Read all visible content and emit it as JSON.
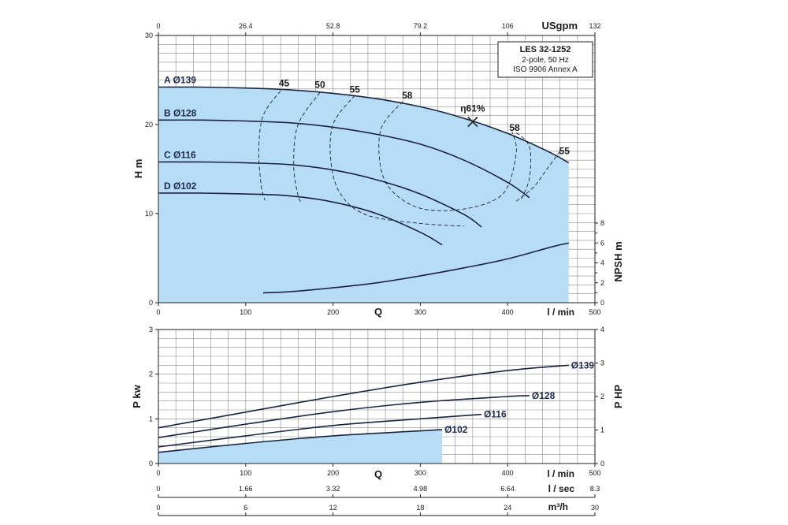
{
  "chart_data": [
    {
      "type": "line",
      "model_box": {
        "title": "LES 32-1252",
        "line1": "2-pole, 50 Hz",
        "line2": "ISO 9906 Annex A"
      },
      "x_label_q": "Q",
      "x_unit_lmin": "l / min",
      "x_ticks_lmin": [
        0,
        100,
        200,
        300,
        400,
        500
      ],
      "xlim": [
        0,
        500
      ],
      "top_unit": "USgpm",
      "top_ticks": [
        "0",
        "26.4",
        "52.8",
        "79.2",
        "106",
        "132"
      ],
      "ylabel": "H m",
      "ylim": [
        0,
        30
      ],
      "y_ticks": [
        0,
        10,
        20,
        30
      ],
      "y2label": "NPSH m",
      "y2lim": [
        0,
        8
      ],
      "y2_ticks": [
        0,
        2,
        4,
        6,
        8
      ],
      "series": [
        {
          "name": "A Ø139",
          "x": [
            0,
            50,
            100,
            150,
            200,
            250,
            300,
            350,
            400,
            450,
            470
          ],
          "y": [
            24.2,
            24.2,
            24.1,
            23.9,
            23.5,
            22.9,
            22.0,
            20.7,
            19.0,
            16.8,
            15.7
          ]
        },
        {
          "name": "B Ø128",
          "x": [
            0,
            50,
            100,
            150,
            200,
            250,
            300,
            350,
            400,
            425
          ],
          "y": [
            20.5,
            20.5,
            20.4,
            20.2,
            19.7,
            18.9,
            17.8,
            16.0,
            13.5,
            11.8
          ]
        },
        {
          "name": "C Ø116",
          "x": [
            0,
            50,
            100,
            150,
            200,
            250,
            300,
            350,
            370
          ],
          "y": [
            15.8,
            15.8,
            15.7,
            15.5,
            14.9,
            13.8,
            12.2,
            9.9,
            8.5
          ]
        },
        {
          "name": "D Ø102",
          "x": [
            0,
            50,
            100,
            150,
            200,
            250,
            300,
            325
          ],
          "y": [
            12.3,
            12.3,
            12.2,
            12.0,
            11.3,
            10.0,
            7.9,
            6.5
          ]
        }
      ],
      "npsh_curve": {
        "x": [
          120,
          150,
          200,
          250,
          300,
          350,
          400,
          450,
          470
        ],
        "y": [
          1.0,
          1.1,
          1.5,
          2.0,
          2.7,
          3.5,
          4.4,
          5.6,
          6.0
        ]
      },
      "efficiency_labels": [
        "45",
        "50",
        "55",
        "58",
        "58",
        "55"
      ],
      "bep_label": "η61%",
      "bep_point": {
        "x": 360,
        "y": 20.3
      }
    },
    {
      "type": "line",
      "x_label_q": "Q",
      "x_unit_lmin": "l / min",
      "x_ticks_lmin": [
        0,
        100,
        200,
        300,
        400,
        500
      ],
      "x_unit_lsec": "l / sec",
      "x_ticks_lsec": [
        "0",
        "1.66",
        "3.32",
        "4.98",
        "6.64",
        "8.3"
      ],
      "x_unit_m3h": "m³/h",
      "x_ticks_m3h": [
        "0",
        "6",
        "12",
        "18",
        "24",
        "30"
      ],
      "ylabel": "P kw",
      "ylim": [
        0,
        3
      ],
      "y_ticks": [
        0,
        1,
        2,
        3
      ],
      "y2label": "P HP",
      "y2lim": [
        0,
        4
      ],
      "y2_ticks": [
        0,
        1,
        2,
        3,
        4
      ],
      "series": [
        {
          "name": "Ø139",
          "x": [
            0,
            100,
            200,
            300,
            400,
            470
          ],
          "y": [
            0.8,
            1.15,
            1.5,
            1.82,
            2.08,
            2.2
          ]
        },
        {
          "name": "Ø128",
          "x": [
            0,
            100,
            200,
            300,
            400,
            425
          ],
          "y": [
            0.58,
            0.88,
            1.16,
            1.37,
            1.5,
            1.52
          ]
        },
        {
          "name": "Ø116",
          "x": [
            0,
            100,
            200,
            300,
            370
          ],
          "y": [
            0.37,
            0.62,
            0.85,
            1.0,
            1.1
          ]
        },
        {
          "name": "Ø102",
          "x": [
            0,
            100,
            200,
            300,
            325
          ],
          "y": [
            0.25,
            0.45,
            0.62,
            0.73,
            0.76
          ]
        }
      ]
    }
  ]
}
